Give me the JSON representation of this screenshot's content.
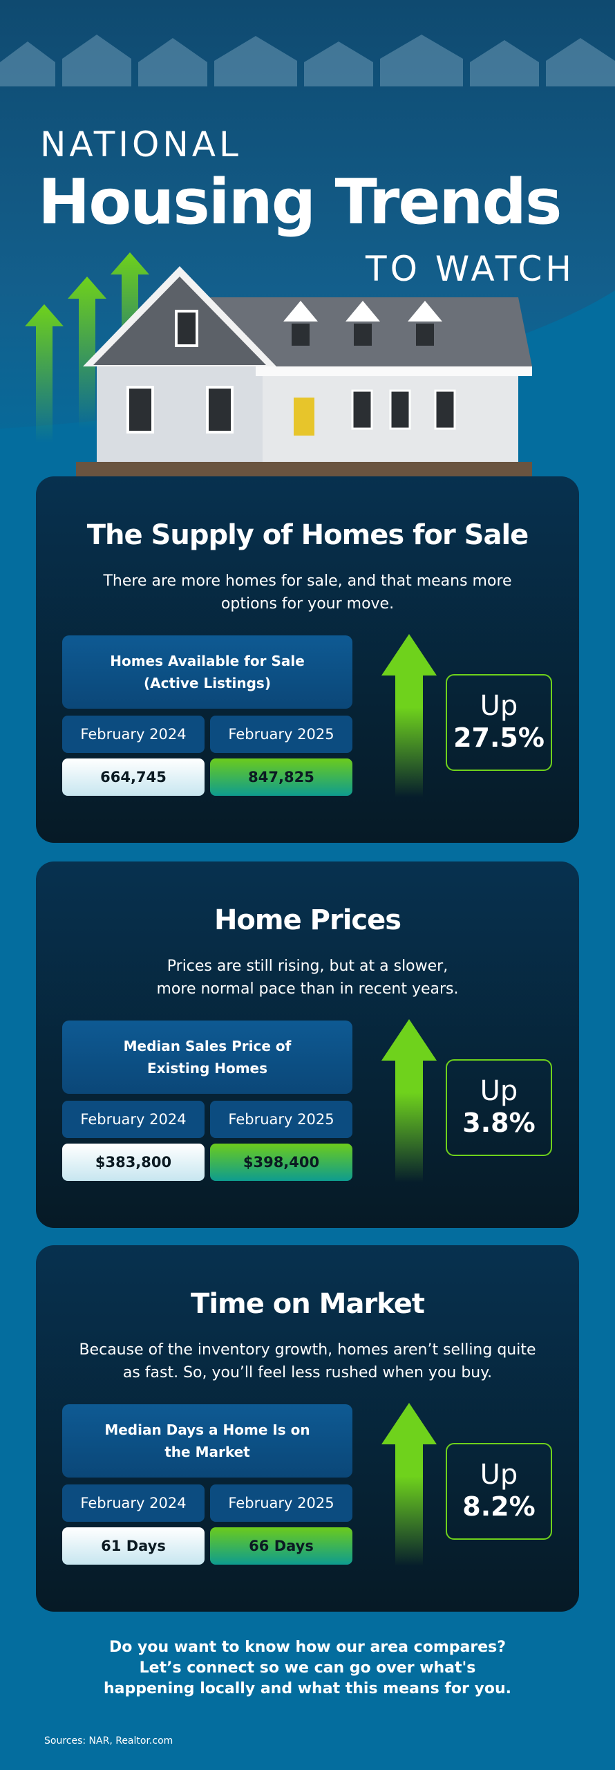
{
  "header": {
    "line1": "NATIONAL",
    "line2": "Housing Trends",
    "line3": "TO WATCH"
  },
  "colors": {
    "background": "#046d9e",
    "card": "#061a26",
    "accent_green": "#6fd21c",
    "label_box": "#0c4c80"
  },
  "cards": [
    {
      "title": "The Supply of Homes for Sale",
      "subtitle": "There are more homes for sale, and that means more options for your move.",
      "metric": "Homes Available for Sale (Active Listings)",
      "date1": "February 2024",
      "date2": "February 2025",
      "value1": "664,745",
      "value2": "847,825",
      "up_label": "Up",
      "change": "27.5%"
    },
    {
      "title": "Home Prices",
      "subtitle": "Prices are still rising, but at a slower, more normal pace than in recent years.",
      "metric": "Median Sales Price of Existing Homes",
      "date1": "February 2024",
      "date2": "February 2025",
      "value1": "$383,800",
      "value2": "$398,400",
      "up_label": "Up",
      "change": "3.8%"
    },
    {
      "title": "Time on Market",
      "subtitle": "Because of the inventory growth, homes aren’t selling quite as fast. So, you’ll feel less rushed when you buy.",
      "metric": "Median Days a Home Is on the Market",
      "date1": "February 2024",
      "date2": "February 2025",
      "value1": "61 Days",
      "value2": "66 Days",
      "up_label": "Up",
      "change": "8.2%"
    }
  ],
  "cta": "Do you want to know how our area compares? Let’s connect so we can go over what's happening locally and what this means for you.",
  "sources": "Sources: NAR, Realtor.com"
}
